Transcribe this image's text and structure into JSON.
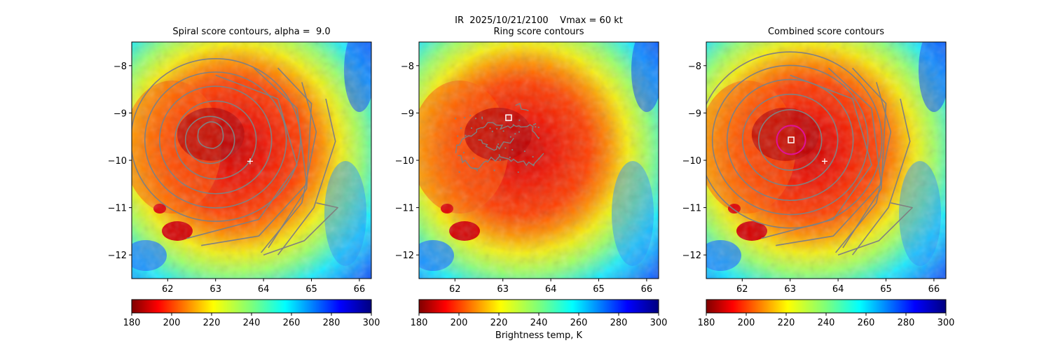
{
  "figure": {
    "suptitle": "IR  2025/10/21/2100    Vmax = 60 kt",
    "colorbar_label": "Brightness temp, K"
  },
  "colors": {
    "contour": "#808080",
    "center_circle": "#e0109a",
    "marker": "#ffffff",
    "colormap": "jet_reversed"
  },
  "chart_data": [
    {
      "type": "heatmap",
      "title": "Spiral score contours, alpha =  9.0",
      "xlabel": "",
      "ylabel": "",
      "xlim": [
        61.25,
        66.25
      ],
      "ylim": [
        -12.5,
        -7.5
      ],
      "xticks": [
        "62",
        "63",
        "64",
        "65",
        "66"
      ],
      "yticks": [
        "−8",
        "−9",
        "−10",
        "−11",
        "−12"
      ],
      "background_field": "IR brightness temperature (K)",
      "overlay": "spiral score contours (gray)",
      "markers": [
        {
          "symbol": "+",
          "lon": 63.72,
          "lat": -10.02
        }
      ],
      "colorbar": {
        "range": [
          180,
          300
        ],
        "ticks": [
          "180",
          "200",
          "220",
          "240",
          "260",
          "280",
          "300"
        ]
      }
    },
    {
      "type": "heatmap",
      "title": "Ring score contours",
      "xlabel": "",
      "ylabel": "",
      "xlim": [
        61.25,
        66.25
      ],
      "ylim": [
        -12.5,
        -7.5
      ],
      "xticks": [
        "62",
        "63",
        "64",
        "65",
        "66"
      ],
      "yticks": [
        "−8",
        "−9",
        "−10",
        "−11",
        "−12"
      ],
      "background_field": "IR brightness temperature (K)",
      "overlay": "ring score contours (gray, fragmented)",
      "markers": [
        {
          "symbol": "square",
          "lon": 63.12,
          "lat": -9.1
        }
      ],
      "colorbar": {
        "range": [
          180,
          300
        ],
        "ticks": [
          "180",
          "200",
          "220",
          "240",
          "260",
          "280",
          "300"
        ]
      }
    },
    {
      "type": "heatmap",
      "title": "Combined score contours",
      "xlabel": "",
      "ylabel": "",
      "xlim": [
        61.25,
        66.25
      ],
      "ylim": [
        -12.5,
        -7.5
      ],
      "xticks": [
        "62",
        "63",
        "64",
        "65",
        "66"
      ],
      "yticks": [
        "−8",
        "−9",
        "−10",
        "−11",
        "−12"
      ],
      "background_field": "IR brightness temperature (K)",
      "overlay": "combined score contours (gray)",
      "markers": [
        {
          "symbol": "+",
          "lon": 63.72,
          "lat": -10.02
        },
        {
          "symbol": "square",
          "lon": 63.02,
          "lat": -9.57
        },
        {
          "symbol": "circle",
          "lon": 63.02,
          "lat": -9.57,
          "radius_deg": 0.3
        }
      ],
      "colorbar": {
        "range": [
          180,
          300
        ],
        "ticks": [
          "180",
          "200",
          "220",
          "240",
          "260",
          "280",
          "300"
        ]
      }
    }
  ]
}
